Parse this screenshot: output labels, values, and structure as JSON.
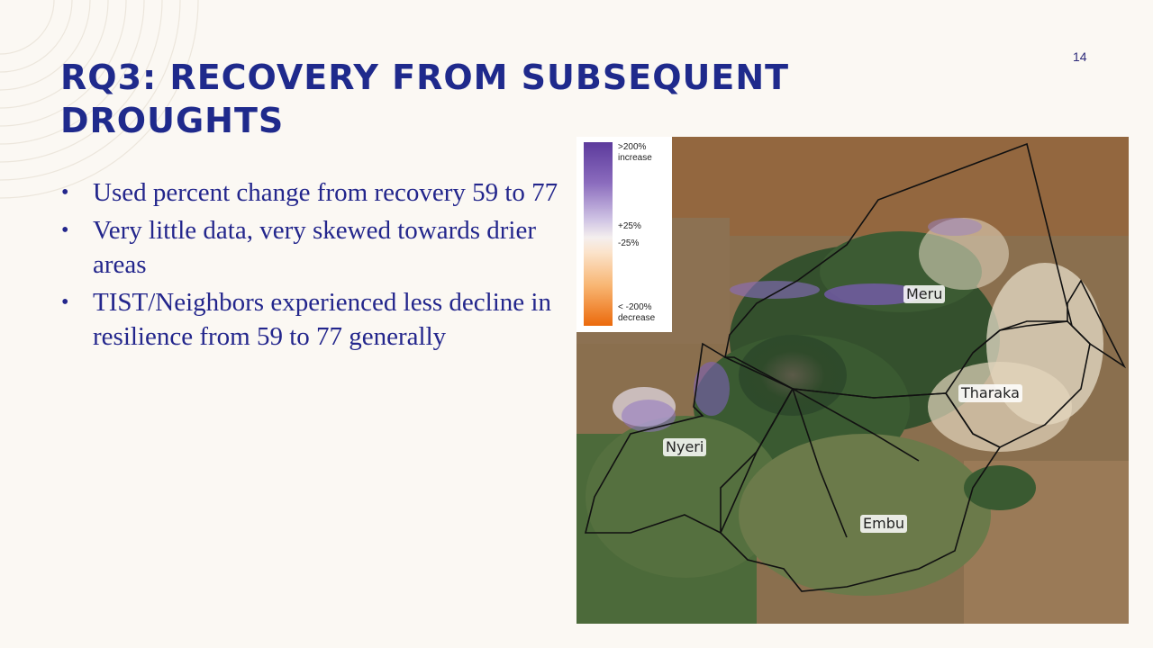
{
  "slide": {
    "page_number": "14",
    "title": "RQ3: Recovery from Subsequent Droughts",
    "bullets": [
      "Used percent change from recovery 59 to 77",
      "Very little data, very skewed towards drier areas",
      "TIST/Neighbors experienced less decline in resilience from 59 to 77 generally"
    ]
  },
  "map": {
    "legend": {
      "top": ">200% increase",
      "mid_upper": "+25%",
      "mid_lower": "-25%",
      "bottom": "< -200% decrease"
    },
    "regions": {
      "meru": "Meru",
      "tharaka": "Tharaka",
      "nyeri": "Nyeri",
      "embu": "Embu"
    }
  },
  "colors": {
    "title": "#1f2a8c",
    "body_text": "#23268c",
    "background": "#fbf8f3"
  }
}
